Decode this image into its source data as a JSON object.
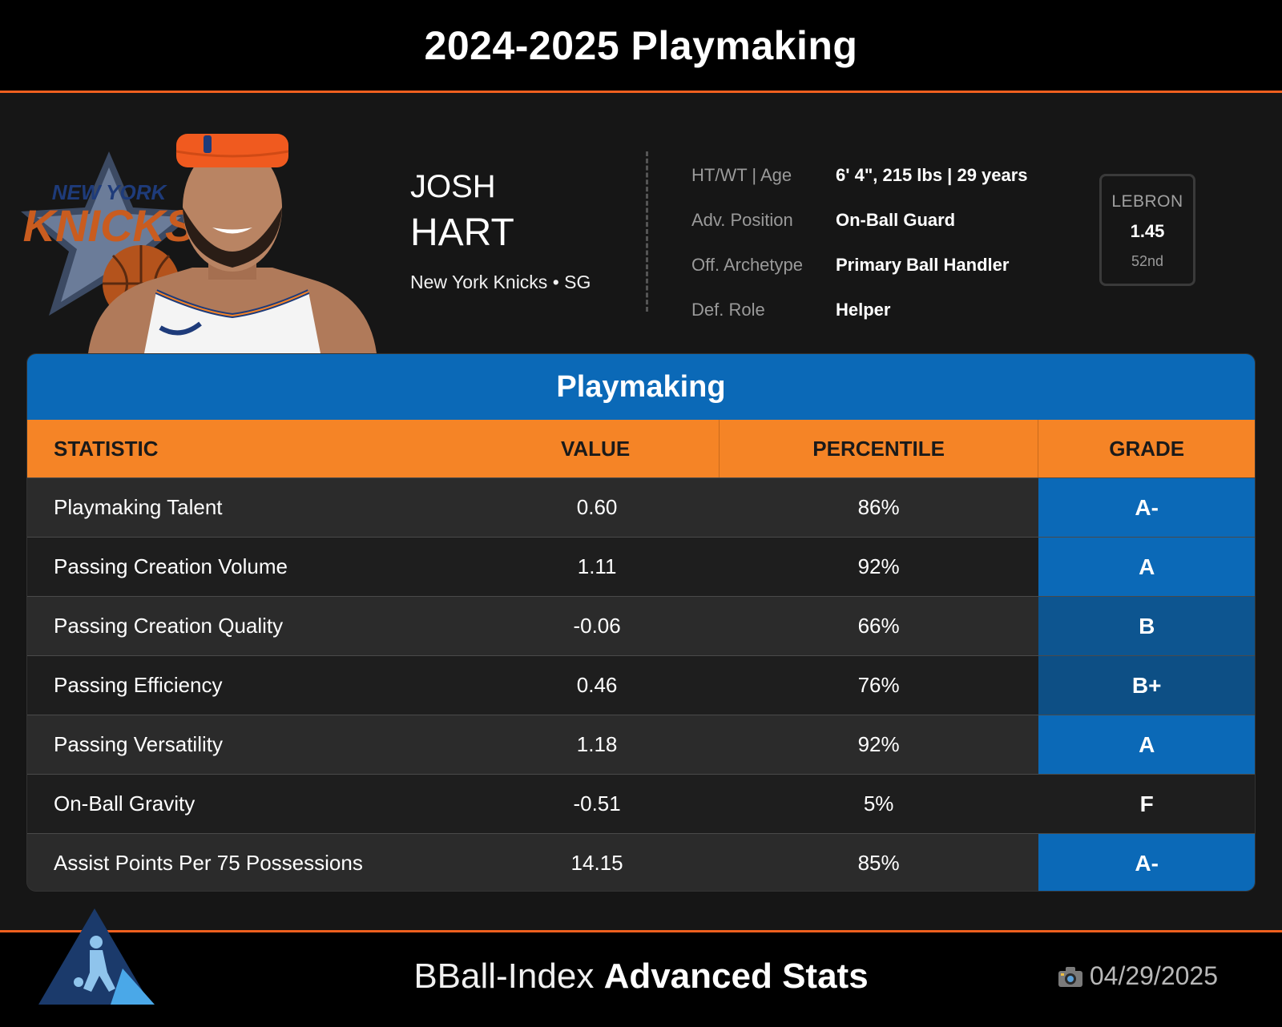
{
  "header": {
    "title": "2024-2025 Playmaking"
  },
  "player": {
    "first_name": "JOSH",
    "last_name": "HART",
    "team_position": "New York Knicks • SG"
  },
  "info": [
    {
      "label": "HT/WT | Age",
      "value": "6' 4\", 215 lbs | 29 years"
    },
    {
      "label": "Adv. Position",
      "value": "On-Ball Guard"
    },
    {
      "label": "Off. Archetype",
      "value": "Primary Ball Handler"
    },
    {
      "label": "Def. Role",
      "value": "Helper"
    }
  ],
  "lebron": {
    "label": "LEBRON",
    "value": "1.45",
    "rank": "52nd"
  },
  "table": {
    "title": "Playmaking",
    "columns": {
      "statistic": "STATISTIC",
      "value": "VALUE",
      "percentile": "PERCENTILE",
      "grade": "GRADE"
    },
    "rows": [
      {
        "statistic": "Playmaking Talent",
        "value": "0.60",
        "percentile": "86%",
        "grade": "A-",
        "grade_color": "#0b69b7"
      },
      {
        "statistic": "Passing Creation Volume",
        "value": "1.11",
        "percentile": "92%",
        "grade": "A",
        "grade_color": "#0b69b7"
      },
      {
        "statistic": "Passing Creation Quality",
        "value": "-0.06",
        "percentile": "66%",
        "grade": "B",
        "grade_color": "#0d5590"
      },
      {
        "statistic": "Passing Efficiency",
        "value": "0.46",
        "percentile": "76%",
        "grade": "B+",
        "grade_color": "#0d4f85"
      },
      {
        "statistic": "Passing Versatility",
        "value": "1.18",
        "percentile": "92%",
        "grade": "A",
        "grade_color": "#0b69b7"
      },
      {
        "statistic": "On-Ball Gravity",
        "value": "-0.51",
        "percentile": "5%",
        "grade": "F",
        "grade_color": ""
      },
      {
        "statistic": "Assist Points Per 75 Possessions",
        "value": "14.15",
        "percentile": "85%",
        "grade": "A-",
        "grade_color": "#0b69b7"
      }
    ]
  },
  "footer": {
    "brand_light": "BBall-Index",
    "brand_bold": "Advanced Stats",
    "date": "04/29/2025",
    "camera_icon": "camera-icon"
  },
  "colors": {
    "orange": "#f58426",
    "blue": "#0b69b7",
    "accent_line": "#f0601f"
  }
}
